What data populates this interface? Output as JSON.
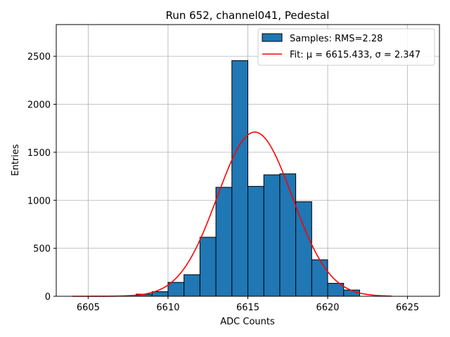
{
  "chart_data": {
    "type": "bar",
    "title": "Run 652, channel041, Pedestal",
    "xlabel": "ADC Counts",
    "ylabel": "Entries",
    "xlim": [
      6603.0,
      6627.0
    ],
    "ylim": [
      0,
      2830
    ],
    "grid": true,
    "x_ticks": [
      6605,
      6610,
      6615,
      6620,
      6625
    ],
    "y_ticks": [
      0,
      500,
      1000,
      1500,
      2000,
      2500
    ],
    "histogram": {
      "name": "Samples: RMS=2.28",
      "bin_edges": [
        6608,
        6609,
        6610,
        6611,
        6612,
        6613,
        6614,
        6615,
        6616,
        6617,
        6618,
        6619,
        6620,
        6621,
        6622
      ],
      "counts": [
        22,
        48,
        145,
        225,
        615,
        1135,
        2455,
        1145,
        1265,
        1275,
        985,
        380,
        135,
        65
      ],
      "color": "#1f77b4",
      "edge_color": "#000000"
    },
    "fit": {
      "name": "Fit: μ = 6615.433, σ = 2.347",
      "mu": 6615.433,
      "sigma": 2.347,
      "amplitude": 1710,
      "x_range": [
        6604,
        6624
      ],
      "color": "#ff0000"
    },
    "legend_position": "upper-right"
  }
}
